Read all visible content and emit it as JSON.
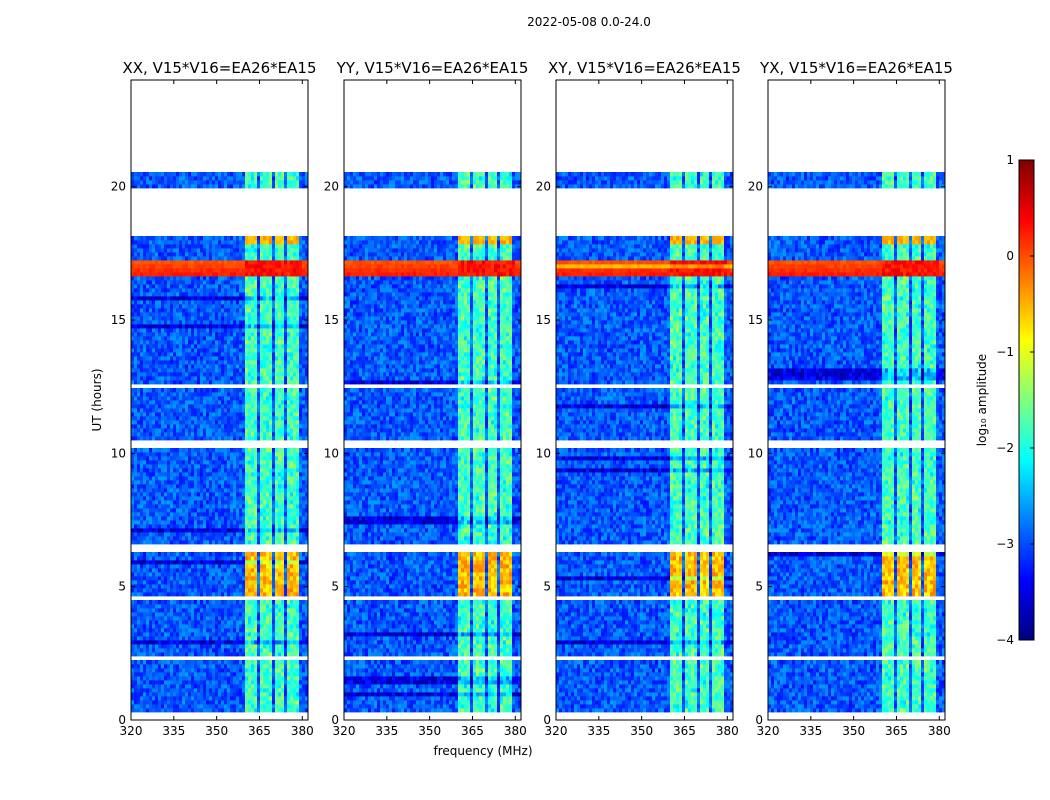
{
  "chart_data": {
    "type": "heatmap",
    "suptitle": "2022-05-08 0.0-24.0",
    "xlabel": "frequency (MHz)",
    "ylabel": "UT (hours)",
    "xlim": [
      320,
      382
    ],
    "ylim": [
      0,
      24
    ],
    "xticks": [
      "320",
      "335",
      "350",
      "365",
      "380"
    ],
    "yticks": [
      "0",
      "5",
      "10",
      "15",
      "20"
    ],
    "colorbar": {
      "label": "log₁₀ amplitude",
      "range": [
        -4,
        1
      ],
      "ticks": [
        "1",
        "0",
        "−1",
        "−2",
        "−3",
        "−4"
      ],
      "colormap": "jet",
      "colors": [
        "#00007f",
        "#0000ff",
        "#007fff",
        "#00ffff",
        "#7fff7f",
        "#ffff00",
        "#ff7f00",
        "#ff0000",
        "#7f0000"
      ]
    },
    "rfi_band_mhz": [
      360,
      380
    ],
    "gaps_hours": [
      [
        0,
        0.35
      ],
      [
        2.3,
        2.45
      ],
      [
        4.45,
        4.65
      ],
      [
        6.35,
        6.55
      ],
      [
        10.25,
        10.55
      ],
      [
        12.45,
        12.6
      ],
      [
        18.1,
        20.0
      ],
      [
        20.6,
        24.0
      ]
    ],
    "bright_events": [
      {
        "hours": [
          16.6,
          17.3
        ],
        "log_amplitude": 0.2
      },
      {
        "hours": [
          4.7,
          6.3
        ],
        "log_amplitude": -0.6,
        "band": "rfi"
      }
    ],
    "panels": [
      {
        "title": "XX, V15*V16=EA26*EA15",
        "seed": 11
      },
      {
        "title": "YY, V15*V16=EA26*EA15",
        "seed": 23
      },
      {
        "title": "XY, V15*V16=EA26*EA15",
        "seed": 37
      },
      {
        "title": "YX, V15*V16=EA26*EA15",
        "seed": 53
      }
    ]
  }
}
